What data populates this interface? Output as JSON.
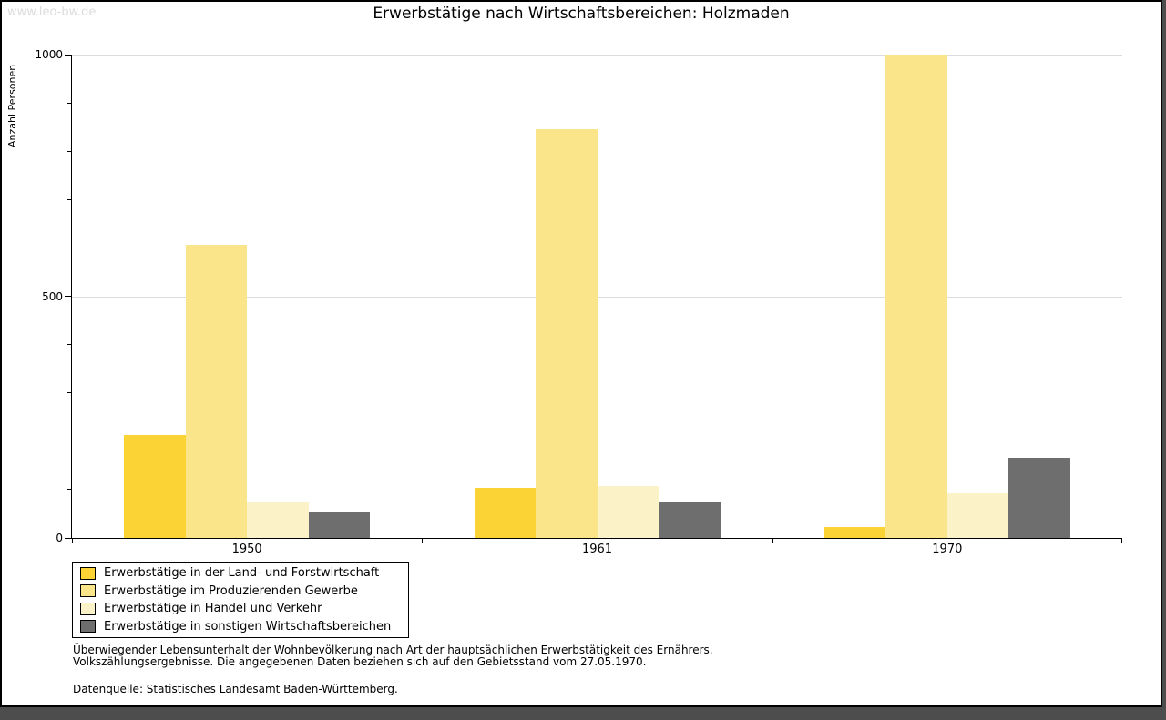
{
  "window": {
    "watermark": "www.leo-bw.de"
  },
  "title": "Erwerbstätige nach Wirtschaftsbereichen: Holzmaden",
  "chart_data": {
    "type": "bar",
    "title": "Erwerbstätige nach Wirtschaftsbereichen: Holzmaden",
    "categories": [
      "1950",
      "1961",
      "1970"
    ],
    "series": [
      {
        "name": "Erwerbstätige in der Land- und Forstwirtschaft",
        "color": "#FBD335",
        "values": [
          213,
          104,
          22
        ]
      },
      {
        "name": "Erwerbstätige im Produzierenden Gewerbe",
        "color": "#FBE58A",
        "values": [
          607,
          845,
          1000
        ]
      },
      {
        "name": "Erwerbstätige in Handel und Verkehr",
        "color": "#FCF2C7",
        "values": [
          76,
          107,
          92
        ]
      },
      {
        "name": "Erwerbstätige in sonstigen Wirtschaftsbereichen",
        "color": "#6E6E6E",
        "values": [
          52,
          76,
          166
        ]
      }
    ],
    "xlabel": "",
    "ylabel": "Anzahl Personen",
    "ylim": [
      0,
      1000
    ],
    "yticks": [
      0,
      500,
      1000
    ],
    "minor_tick_step": 100,
    "grid": "horizontal",
    "gridline_color": "#DCDCDC",
    "legend_position": "bottom-left"
  },
  "footnotes": {
    "line1": "Überwiegender Lebensunterhalt der Wohnbevölkerung nach Art der hauptsächlichen Erwerbstätigkeit des Ernährers.",
    "line2": "Volkszählungsergebnisse. Die angegebenen Daten beziehen sich auf den Gebietsstand vom 27.05.1970.",
    "source": "Datenquelle: Statistisches Landesamt Baden-Württemberg."
  }
}
